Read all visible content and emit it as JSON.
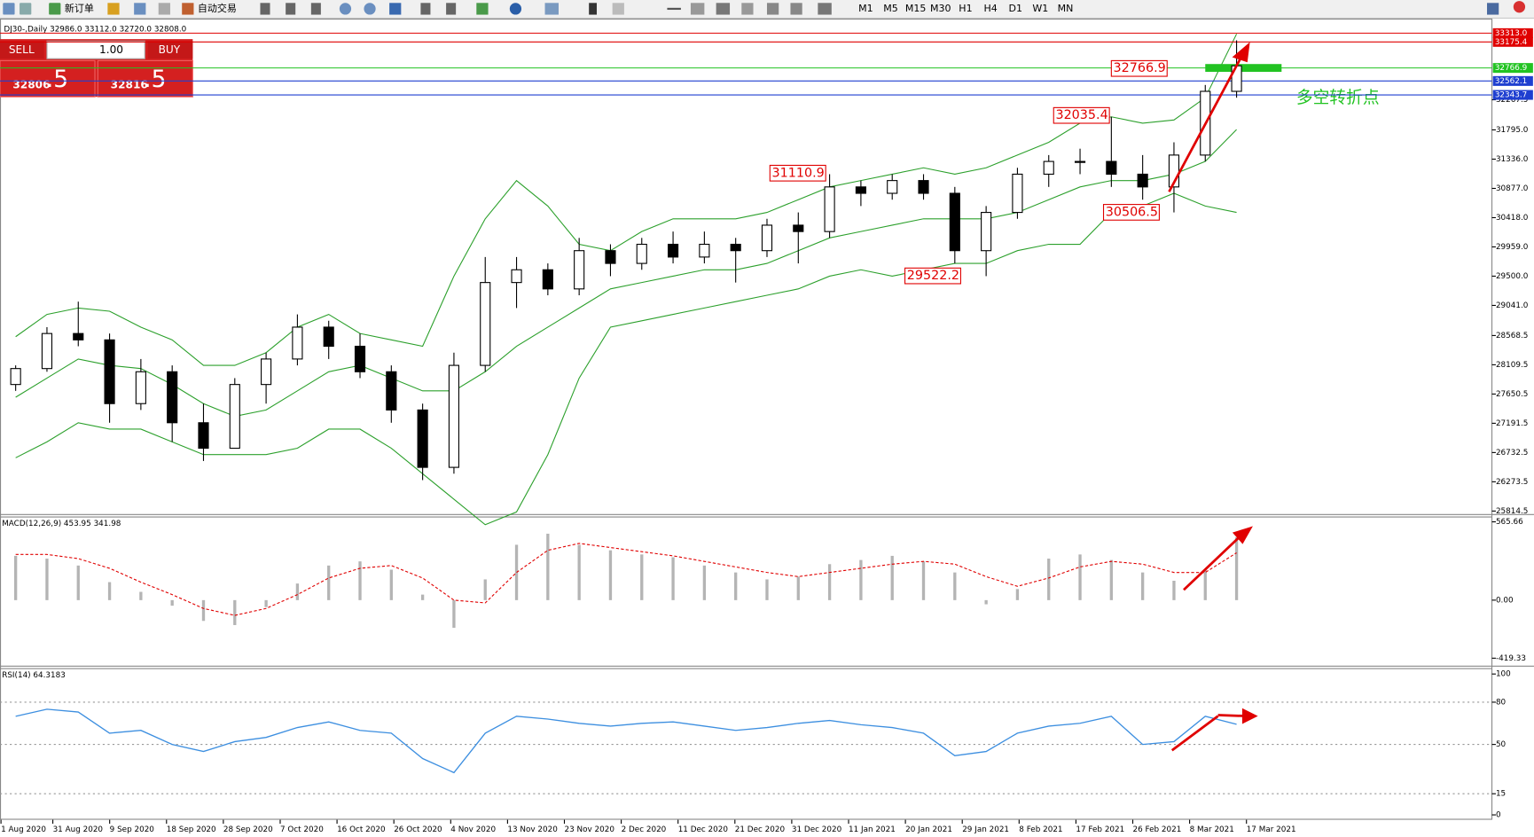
{
  "toolbar": {
    "new_order": "新订单",
    "auto_trade": "自动交易",
    "timeframes": [
      "M1",
      "M5",
      "M15",
      "M30",
      "H1",
      "H4",
      "D1",
      "W1",
      "MN"
    ]
  },
  "trade_panel": {
    "sell": "SELL",
    "buy": "BUY",
    "lots": "1.00",
    "sell_price_main": "32806",
    "sell_price_tail": ".5",
    "buy_price_main": "32816",
    "buy_price_tail": ".5"
  },
  "date_axis": [
    "1 Aug 2020",
    "31 Aug 2020",
    "9 Sep 2020",
    "18 Sep 2020",
    "28 Sep 2020",
    "7 Oct 2020",
    "16 Oct 2020",
    "26 Oct 2020",
    "4 Nov 2020",
    "13 Nov 2020",
    "23 Nov 2020",
    "2 Dec 2020",
    "11 Dec 2020",
    "21 Dec 2020",
    "31 Dec 2020",
    "11 Jan 2021",
    "20 Jan 2021",
    "29 Jan 2021",
    "8 Feb 2021",
    "17 Feb 2021",
    "26 Feb 2021",
    "8 Mar 2021",
    "17 Mar 2021"
  ],
  "chart_data": [
    {
      "type": "candlestick",
      "title": "DJ30-,Daily  32986.0 33112.0 32720.0 32808.0",
      "open": [
        27800,
        28050,
        28600,
        28500,
        27500,
        28000,
        27200,
        26800,
        27800,
        28200,
        28700,
        28400,
        28000,
        27400,
        26500,
        28100,
        29400,
        29600,
        29300,
        29900,
        29700,
        30000,
        29800,
        30000,
        29900,
        30300,
        30200,
        30900,
        30800,
        31000,
        30800,
        29900,
        30500,
        31100,
        31300,
        31300,
        31100,
        30900,
        31400,
        32400
      ],
      "high": [
        28100,
        28700,
        29100,
        28600,
        28200,
        28100,
        27500,
        27900,
        28300,
        28900,
        28800,
        28600,
        28100,
        27500,
        28300,
        29800,
        29800,
        29700,
        30100,
        30000,
        30100,
        30200,
        30200,
        30100,
        30400,
        30500,
        31100,
        31000,
        31100,
        31100,
        30900,
        30600,
        31200,
        31400,
        31500,
        32000,
        31400,
        31600,
        32500,
        33200
      ],
      "low": [
        27700,
        28000,
        28400,
        27200,
        27400,
        26900,
        26600,
        26800,
        27500,
        28100,
        28200,
        27900,
        27200,
        26300,
        26400,
        28000,
        29000,
        29200,
        29200,
        29500,
        29600,
        29700,
        29700,
        29400,
        29800,
        29700,
        30100,
        30600,
        30700,
        30700,
        29700,
        29500,
        30400,
        30900,
        31100,
        30900,
        30700,
        30500,
        31300,
        32300
      ],
      "close": [
        28050,
        28600,
        28500,
        27500,
        28000,
        27200,
        26800,
        27800,
        28200,
        28700,
        28400,
        28000,
        27400,
        26500,
        28100,
        29400,
        29600,
        29300,
        29900,
        29700,
        30000,
        29800,
        30000,
        29900,
        30300,
        30200,
        30900,
        30800,
        31000,
        30800,
        29900,
        30500,
        31100,
        31300,
        31300,
        31100,
        30900,
        31400,
        32400,
        32800
      ],
      "bands": [
        {
          "color": "#2ca02c",
          "values": [
            28550,
            28900,
            29000,
            28950,
            28700,
            28500,
            28100,
            28100,
            28300,
            28700,
            28900,
            28600,
            28500,
            28400,
            29500,
            30400,
            31000,
            30600,
            30000,
            29900,
            30200,
            30400,
            30400,
            30400,
            30500,
            30700,
            30900,
            31000,
            31100,
            31200,
            31100,
            31200,
            31400,
            31600,
            31900,
            32000,
            31900,
            31950,
            32300,
            33300
          ]
        },
        {
          "color": "#2ca02c",
          "values": [
            27600,
            27900,
            28200,
            28100,
            28050,
            27800,
            27500,
            27300,
            27400,
            27700,
            28000,
            28100,
            27900,
            27700,
            27700,
            28000,
            28400,
            28700,
            29000,
            29300,
            29400,
            29500,
            29600,
            29600,
            29700,
            29900,
            30100,
            30200,
            30300,
            30400,
            30400,
            30400,
            30500,
            30700,
            30900,
            31000,
            31000,
            31100,
            31300,
            31800
          ]
        },
        {
          "color": "#2ca02c",
          "values": [
            26650,
            26900,
            27200,
            27100,
            27100,
            26900,
            26700,
            26700,
            26700,
            26800,
            27100,
            27100,
            26800,
            26400,
            26000,
            25600,
            25800,
            26700,
            27900,
            28700,
            28800,
            28900,
            29000,
            29100,
            29200,
            29300,
            29500,
            29600,
            29500,
            29600,
            29700,
            29700,
            29900,
            30000,
            30000,
            30500,
            30600,
            30800,
            30600,
            30500
          ]
        }
      ],
      "levels": [
        {
          "value": 33313,
          "label": "33313.0",
          "color": "#e00000"
        },
        {
          "value": 33175.4,
          "color": "#e00000"
        },
        {
          "value": 32766.9,
          "color": "#22c322"
        },
        {
          "value": 32562.1,
          "color": "#1f3fd0"
        },
        {
          "value": 32343.7,
          "color": "#1f3fd0"
        }
      ],
      "annotations": [
        32766.9,
        32035.4,
        31110.9,
        30506.5,
        29522.2
      ],
      "note": "多空转折点",
      "ylim": [
        25790,
        33480
      ],
      "yticks": [
        32267.5,
        {
          "value": 31795,
          "label": "31795.0"
        },
        {
          "value": 31336,
          "label": "31336.0"
        },
        {
          "value": 30877,
          "label": "30877.0"
        },
        {
          "value": 30418,
          "label": "30418.0"
        },
        {
          "value": 29959,
          "label": "29959.0"
        },
        {
          "value": 29500,
          "label": "29500.0"
        },
        {
          "value": 29041,
          "label": "29041.0"
        },
        28568.5,
        28109.5,
        27650.5,
        27191.5,
        26732.5,
        26273.5,
        25814.5
      ]
    },
    {
      "type": "macd",
      "title": "MACD(12,26,9) 453.95 341.98",
      "values": [
        320,
        300,
        250,
        130,
        60,
        -40,
        -150,
        -180,
        -50,
        120,
        250,
        280,
        220,
        40,
        -200,
        150,
        400,
        480,
        400,
        360,
        330,
        310,
        250,
        200,
        150,
        170,
        260,
        290,
        320,
        280,
        200,
        -30,
        80,
        300,
        330,
        290,
        200,
        140,
        220,
        453.95
      ],
      "signal": [
        330,
        330,
        300,
        230,
        130,
        40,
        -60,
        -110,
        -60,
        40,
        160,
        230,
        250,
        160,
        0,
        -20,
        200,
        360,
        410,
        380,
        350,
        320,
        280,
        240,
        200,
        170,
        200,
        230,
        260,
        280,
        260,
        170,
        100,
        160,
        240,
        280,
        260,
        200,
        200,
        341.98
      ],
      "color": "#b4b4b4",
      "signal_color": "#e00000",
      "ylim": [
        -470,
        590
      ],
      "yticks": [
        {
          "value": 565.66,
          "label": "565.66"
        },
        {
          "value": 0,
          "label": "0.00"
        },
        {
          "value": -419.33,
          "label": "-419.33"
        }
      ]
    },
    {
      "type": "line",
      "title": "RSI(14) 64.3183",
      "values": [
        70,
        75,
        73,
        58,
        60,
        50,
        45,
        52,
        55,
        62,
        66,
        60,
        58,
        40,
        30,
        58,
        70,
        68,
        65,
        63,
        65,
        66,
        63,
        60,
        62,
        65,
        67,
        64,
        62,
        58,
        42,
        45,
        58,
        63,
        65,
        70,
        50,
        52,
        70,
        64.3183
      ],
      "color": "#3d8fe0",
      "ylim": [
        0,
        100
      ],
      "yticks": [
        100,
        80,
        50,
        15,
        0
      ]
    }
  ]
}
